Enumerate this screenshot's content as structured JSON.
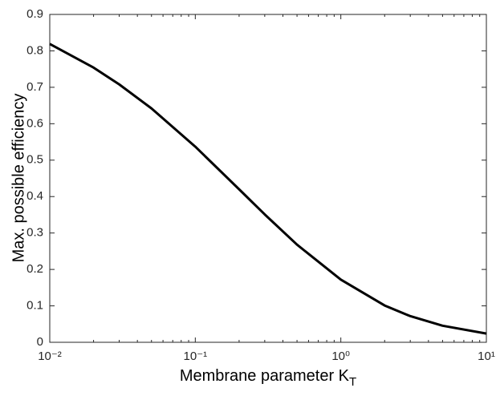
{
  "chart_data": {
    "type": "line",
    "xlabel": {
      "text": "Membrane parameter K",
      "subscript": "T"
    },
    "ylabel": "Max. possible efficiency",
    "xlog": true,
    "x": [
      0.01,
      0.02,
      0.03,
      0.05,
      0.1,
      0.2,
      0.3,
      0.5,
      1,
      2,
      3,
      5,
      10
    ],
    "series": [
      {
        "color": "#000000",
        "values": [
          0.819,
          0.754,
          0.708,
          0.642,
          0.537,
          0.42,
          0.351,
          0.268,
          0.172,
          0.101,
          0.0718,
          0.0455,
          0.024
        ]
      }
    ],
    "xlim": [
      0.01,
      10
    ],
    "ylim": [
      0,
      0.9
    ],
    "xticks": [
      {
        "value": 0.01,
        "label": "10⁻²"
      },
      {
        "value": 0.1,
        "label": "10⁻¹"
      },
      {
        "value": 1,
        "label": "10⁰"
      },
      {
        "value": 10,
        "label": "10¹"
      }
    ],
    "xminorticks": [
      0.02,
      0.03,
      0.04,
      0.05,
      0.06,
      0.07,
      0.08,
      0.09,
      0.2,
      0.3,
      0.4,
      0.5,
      0.6,
      0.7,
      0.8,
      0.9,
      2,
      3,
      4,
      5,
      6,
      7,
      8,
      9
    ],
    "yticks": [
      0,
      0.1,
      0.2,
      0.3,
      0.4,
      0.5,
      0.6,
      0.7,
      0.8,
      0.9
    ],
    "grid": false
  }
}
